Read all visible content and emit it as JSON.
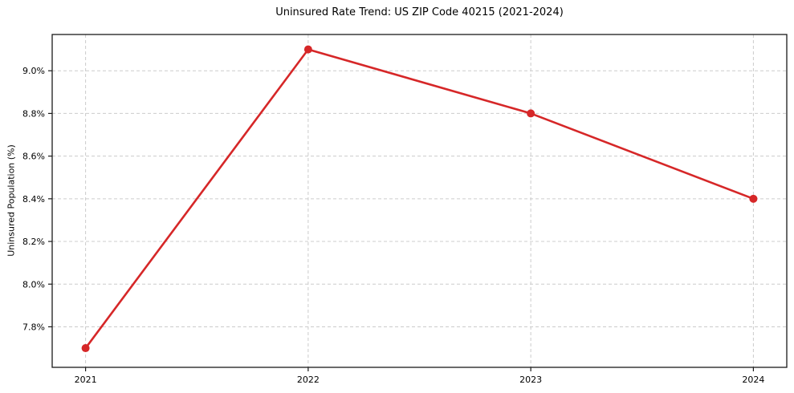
{
  "chart_data": {
    "type": "line",
    "title": "Uninsured Rate Trend: US ZIP Code 40215 (2021-2024)",
    "xlabel": "",
    "ylabel": "Uninsured Population (%)",
    "x": [
      2021,
      2022,
      2023,
      2024
    ],
    "values": [
      7.7,
      9.1,
      8.8,
      8.4
    ],
    "xticks": [
      "2021",
      "2022",
      "2023",
      "2024"
    ],
    "yticks": [
      "7.8%",
      "8.0%",
      "8.2%",
      "8.4%",
      "8.6%",
      "8.8%",
      "9.0%"
    ],
    "ytick_values": [
      7.8,
      8.0,
      8.2,
      8.4,
      8.6,
      8.8,
      9.0
    ],
    "xlim": [
      2020.85,
      2024.15
    ],
    "ylim": [
      7.61,
      9.17
    ],
    "grid": true,
    "grid_style": "dashed",
    "legend": false,
    "line_color": "#d62728",
    "marker": "circle",
    "marker_color": "#d62728",
    "grid_color": "#cccccc",
    "frame_color": "#1a1a1a",
    "text_color": "#000000",
    "background_color": "#ffffff"
  }
}
